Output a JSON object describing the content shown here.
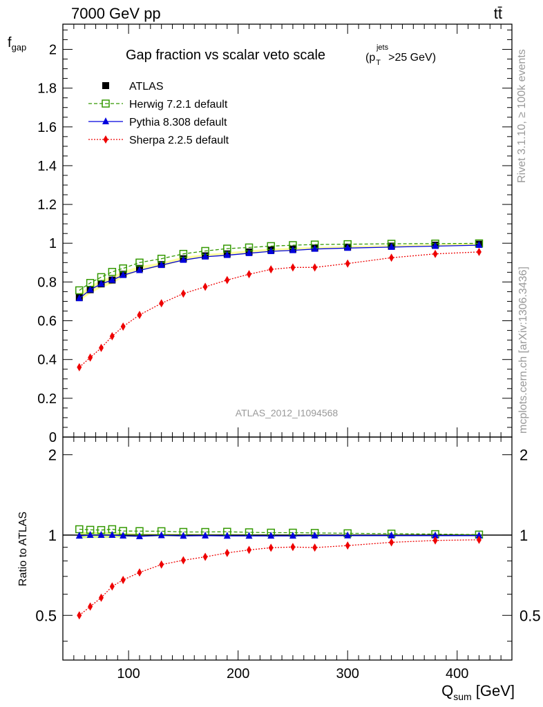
{
  "chart_data": {
    "type": "line",
    "header": {
      "energy": "7000 GeV pp",
      "process": "tt̄"
    },
    "title": "Gap fraction vs scalar veto scale",
    "title_cut": {
      "base": "(p",
      "sub": "T",
      "sup": "jets",
      "rest": ">25 GeV)"
    },
    "analysis_id": "ATLAS_2012_I1094568",
    "side_text": {
      "rivet": "Rivet 3.1.10, ≥ 100k events",
      "source": "mcplots.cern.ch [arXiv:1306.3436]"
    },
    "xlabel": {
      "base": "Q",
      "sub": "sum",
      "unit": " [GeV]"
    },
    "xlim": [
      40,
      450
    ],
    "xticks": [
      "100",
      "200",
      "300",
      "400"
    ],
    "ylabel_main": {
      "base": "f",
      "sub": "gap"
    },
    "ylim_main": [
      0,
      2.13
    ],
    "yticks_main": [
      "0",
      "0.2",
      "0.4",
      "0.6",
      "0.8",
      "1",
      "1.2",
      "1.4",
      "1.6",
      "1.8",
      "2"
    ],
    "ylabel_ratio": "Ratio to ATLAS",
    "ylim_ratio": [
      0.34,
      2.33
    ],
    "yticks_ratio": [
      "0.5",
      "1",
      "2"
    ],
    "legend": {
      "position": "top-left"
    },
    "x": [
      55,
      65,
      75,
      85,
      95,
      110,
      130,
      150,
      170,
      190,
      210,
      230,
      250,
      270,
      300,
      340,
      380,
      420
    ],
    "series": [
      {
        "name": "ATLAS",
        "color": "#000000",
        "marker": "square-filled",
        "line": "none",
        "values": [
          0.72,
          0.76,
          0.79,
          0.81,
          0.84,
          0.87,
          0.89,
          0.92,
          0.935,
          0.945,
          0.955,
          0.965,
          0.97,
          0.975,
          0.98,
          0.985,
          0.99,
          0.995
        ],
        "band": [
          0.02,
          0.02,
          0.02,
          0.02,
          0.015,
          0.012,
          0.01,
          0.01,
          0.008,
          0.008,
          0.008,
          0.007,
          0.006,
          0.006,
          0.005,
          0.005,
          0.004,
          0.004
        ]
      },
      {
        "name": "Herwig 7.2.1 default",
        "color": "#339900",
        "marker": "square-open",
        "line": "dashed",
        "values": [
          0.757,
          0.795,
          0.825,
          0.852,
          0.87,
          0.9,
          0.92,
          0.945,
          0.96,
          0.972,
          0.978,
          0.985,
          0.99,
          0.993,
          0.995,
          0.997,
          0.998,
          0.999
        ]
      },
      {
        "name": "Pythia 8.308 default",
        "color": "#0000dd",
        "marker": "triangle-filled",
        "line": "solid",
        "values": [
          0.715,
          0.76,
          0.79,
          0.81,
          0.835,
          0.86,
          0.887,
          0.913,
          0.93,
          0.938,
          0.948,
          0.958,
          0.963,
          0.97,
          0.975,
          0.98,
          0.985,
          0.99
        ]
      },
      {
        "name": "Sherpa 2.2.5 default",
        "color": "#ee0000",
        "marker": "diamond-filled",
        "line": "dotted",
        "values": [
          0.36,
          0.41,
          0.46,
          0.52,
          0.57,
          0.63,
          0.69,
          0.74,
          0.775,
          0.81,
          0.84,
          0.865,
          0.875,
          0.875,
          0.895,
          0.925,
          0.945,
          0.955
        ]
      }
    ]
  }
}
